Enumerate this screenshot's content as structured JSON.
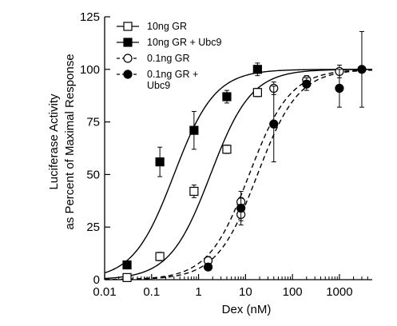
{
  "chart_data": {
    "type": "scatter",
    "title": "",
    "xlabel": "Dex (nM)",
    "ylabel_lines": [
      "Luciferase Activity",
      "as Percent of Maximal Response"
    ],
    "x_scale": "log",
    "xlim": [
      0.01,
      5000
    ],
    "ylim": [
      0,
      125
    ],
    "x_ticks": [
      0.01,
      0.1,
      1,
      10,
      100,
      1000
    ],
    "x_tick_labels": [
      "0.01",
      "0.1",
      "1",
      "10",
      "100",
      "1000"
    ],
    "y_ticks": [
      0,
      25,
      50,
      75,
      100,
      125
    ],
    "y_tick_labels": [
      "0",
      "25",
      "50",
      "75",
      "100",
      "125"
    ],
    "grid": false,
    "legend_position": "upper-left",
    "series": [
      {
        "name": "10ng GR",
        "marker": "open-square",
        "line": "solid",
        "fit": {
          "ec50": 1.8,
          "hill": 1.0
        },
        "points": [
          {
            "x": 0.03,
            "y": 1,
            "err": 1
          },
          {
            "x": 0.15,
            "y": 11,
            "err": 2
          },
          {
            "x": 0.8,
            "y": 42,
            "err": 3
          },
          {
            "x": 4,
            "y": 62,
            "err": 2
          },
          {
            "x": 18,
            "y": 89,
            "err": 2
          }
        ]
      },
      {
        "name": "10ng GR + Ubc9",
        "marker": "filled-square",
        "line": "solid",
        "fit": {
          "ec50": 0.3,
          "hill": 1.0
        },
        "points": [
          {
            "x": 0.03,
            "y": 7,
            "err": 0
          },
          {
            "x": 0.15,
            "y": 56,
            "err": 7
          },
          {
            "x": 0.8,
            "y": 71,
            "err": 9
          },
          {
            "x": 4,
            "y": 87,
            "err": 3
          },
          {
            "x": 18,
            "y": 100,
            "err": 3
          }
        ]
      },
      {
        "name": "0.1ng GR",
        "marker": "open-circle",
        "line": "dashed",
        "fit": {
          "ec50": 12,
          "hill": 1.0
        },
        "points": [
          {
            "x": 1.6,
            "y": 9,
            "err": 2
          },
          {
            "x": 8,
            "y": 31,
            "err": 3
          },
          {
            "x": 8,
            "y": 37,
            "err": 2
          },
          {
            "x": 40,
            "y": 91,
            "err": 3
          },
          {
            "x": 200,
            "y": 95,
            "err": 2
          },
          {
            "x": 1000,
            "y": 99,
            "err": 3
          }
        ]
      },
      {
        "name_lines": [
          "0.1ng GR +",
          "Ubc9"
        ],
        "marker": "filled-circle",
        "line": "dashed",
        "fit": {
          "ec50": 18,
          "hill": 1.0
        },
        "points": [
          {
            "x": 1.6,
            "y": 6,
            "err": 0
          },
          {
            "x": 8,
            "y": 34,
            "err": 8
          },
          {
            "x": 40,
            "y": 74,
            "err": 18
          },
          {
            "x": 200,
            "y": 93,
            "err": 3
          },
          {
            "x": 1000,
            "y": 91,
            "err": 9
          },
          {
            "x": 3000,
            "y": 100,
            "err": 18
          }
        ]
      }
    ],
    "colors": {
      "axis": "#000000",
      "marker": "#000000",
      "background": "#ffffff"
    }
  }
}
